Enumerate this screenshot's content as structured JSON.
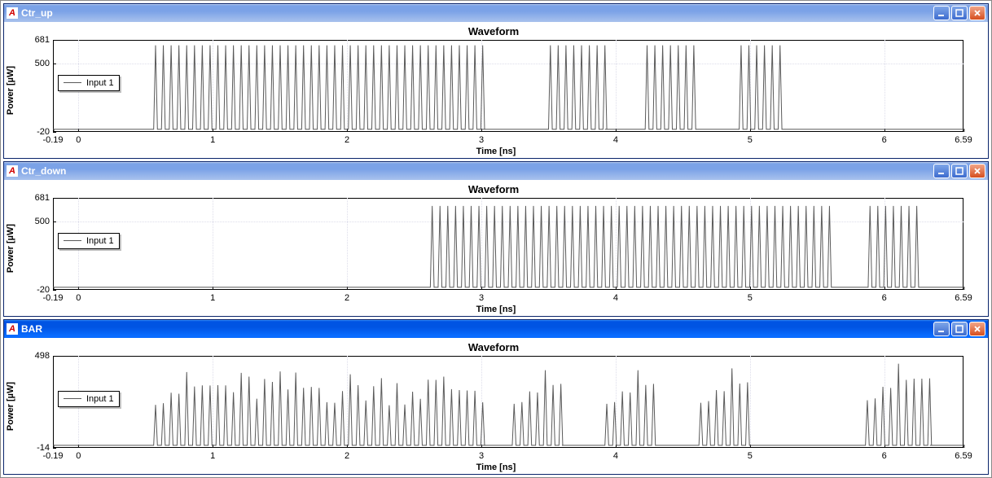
{
  "windows": [
    {
      "id": "ctr_up",
      "title": "Ctr_up",
      "active": false,
      "chart": {
        "type": "line",
        "title": "Waveform",
        "ylabel": "Power [µW]",
        "xlabel": "Time [ns]",
        "legend": "Input 1",
        "xlim": [
          -0.19,
          6.59
        ],
        "ylim": [
          -20,
          681
        ],
        "xticks": [
          -0.19,
          0,
          1,
          2,
          3,
          4,
          5,
          6,
          6.59
        ],
        "yticks": [
          -20,
          500,
          681
        ],
        "xgrid": [
          0,
          1,
          2,
          3,
          4,
          5,
          6
        ],
        "ygrid": [
          500
        ],
        "line_color": "#5a5a5a",
        "grid_color": "#ddddea",
        "background": "#ffffff",
        "title_fontsize": 13,
        "label_fontsize": 11,
        "pulse_width_ns": 0.028,
        "bursts": [
          {
            "start": 0.56,
            "end": 3.0,
            "amp": 640,
            "period": 0.058
          },
          {
            "start": 3.5,
            "end": 3.92,
            "amp": 640,
            "period": 0.058
          },
          {
            "start": 4.22,
            "end": 4.62,
            "amp": 640,
            "period": 0.058
          },
          {
            "start": 4.92,
            "end": 5.24,
            "amp": 640,
            "period": 0.058
          }
        ]
      }
    },
    {
      "id": "ctr_down",
      "title": "Ctr_down",
      "active": false,
      "chart": {
        "type": "line",
        "title": "Waveform",
        "ylabel": "Power [µW]",
        "xlabel": "Time [ns]",
        "legend": "Input 1",
        "xlim": [
          -0.19,
          6.59
        ],
        "ylim": [
          -20,
          681
        ],
        "xticks": [
          -0.19,
          0,
          1,
          2,
          3,
          4,
          5,
          6,
          6.59
        ],
        "yticks": [
          -20,
          500,
          681
        ],
        "xgrid": [
          0,
          1,
          2,
          3,
          4,
          5,
          6
        ],
        "ygrid": [
          500
        ],
        "line_color": "#5a5a5a",
        "grid_color": "#ddddea",
        "background": "#ffffff",
        "title_fontsize": 13,
        "label_fontsize": 11,
        "pulse_width_ns": 0.028,
        "bursts": [
          {
            "start": 2.62,
            "end": 5.62,
            "amp": 620,
            "period": 0.058
          },
          {
            "start": 5.88,
            "end": 6.28,
            "amp": 620,
            "period": 0.058
          }
        ]
      }
    },
    {
      "id": "bar",
      "title": "BAR",
      "active": true,
      "chart": {
        "type": "line",
        "title": "Waveform",
        "ylabel": "Power [µW]",
        "xlabel": "Time [ns]",
        "legend": "Input 1",
        "xlim": [
          -0.19,
          6.59
        ],
        "ylim": [
          -14,
          498
        ],
        "xticks": [
          -0.19,
          0,
          1,
          2,
          3,
          4,
          5,
          6,
          6.59
        ],
        "yticks": [
          -14,
          498
        ],
        "xgrid": [
          0,
          1,
          2,
          3,
          4,
          5,
          6
        ],
        "ygrid": [],
        "line_color": "#5a5a5a",
        "grid_color": "#ddddea",
        "background": "#ffffff",
        "title_fontsize": 13,
        "label_fontsize": 11,
        "pulse_width_ns": 0.028,
        "irregular": true,
        "bursts": [
          {
            "start": 0.56,
            "end": 3.0,
            "amp": 400,
            "period": 0.058
          },
          {
            "start": 3.23,
            "end": 3.6,
            "amp": 410,
            "period": 0.058
          },
          {
            "start": 3.92,
            "end": 4.3,
            "amp": 410,
            "period": 0.058
          },
          {
            "start": 4.62,
            "end": 5.02,
            "amp": 420,
            "period": 0.058
          },
          {
            "start": 5.86,
            "end": 6.34,
            "amp": 445,
            "period": 0.058
          }
        ]
      }
    }
  ]
}
